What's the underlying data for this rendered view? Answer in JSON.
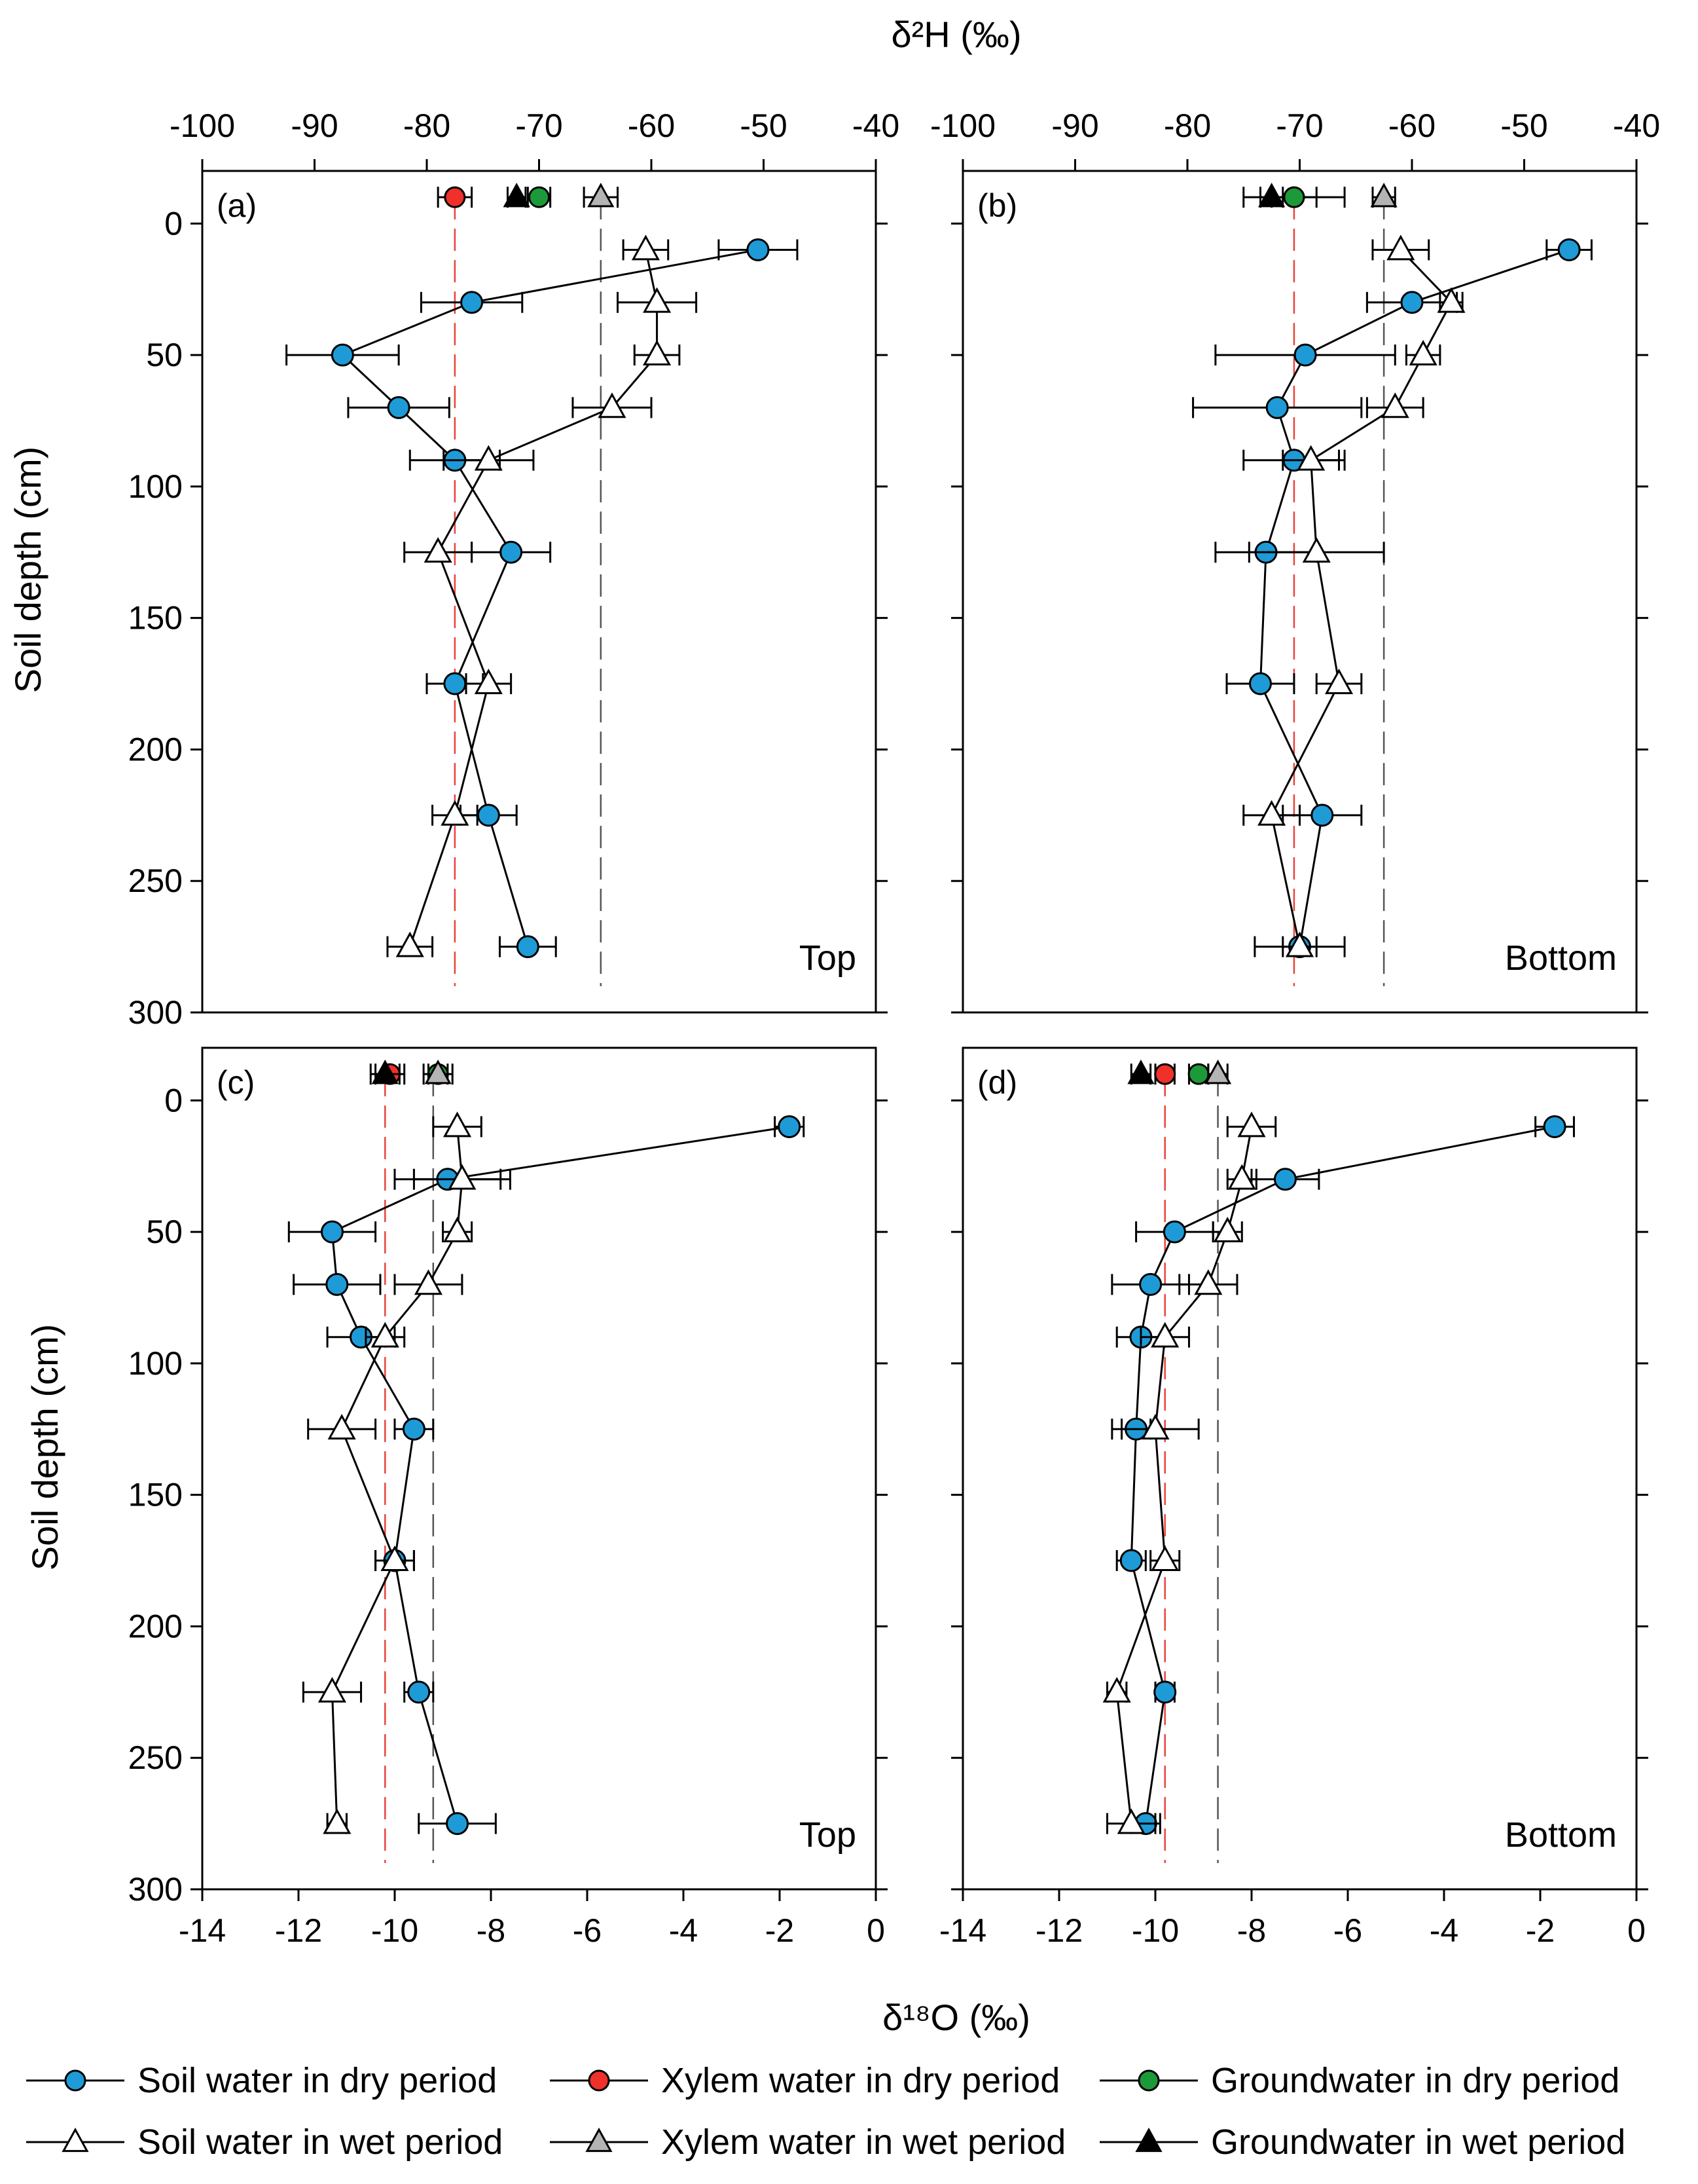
{
  "figure": {
    "top_axis_title": "δ²H (‰)",
    "bottom_axis_title": "δ¹⁸O (‰)",
    "y_axis_title": "Soil depth (cm)",
    "colors": {
      "soil_dry": "#1E9BD7",
      "xylem_dry": "#F0302A",
      "groundwater_dry": "#1C9A3A",
      "soil_wet": "#FFFFFF",
      "xylem_wet": "#B4B4B4",
      "groundwater_wet": "#000000",
      "ref_line_xylem_dry": "#E8443A",
      "ref_line_other": "#555555"
    },
    "legend": [
      {
        "key": "soil_dry",
        "label": "Soil water in dry period",
        "marker": "circle"
      },
      {
        "key": "xylem_dry",
        "label": "Xylem water in dry period",
        "marker": "circle"
      },
      {
        "key": "groundwater_dry",
        "label": "Groundwater in dry period",
        "marker": "circle"
      },
      {
        "key": "soil_wet",
        "label": "Soil water in wet period",
        "marker": "triangle"
      },
      {
        "key": "xylem_wet",
        "label": "Xylem water in wet period",
        "marker": "triangle"
      },
      {
        "key": "groundwater_wet",
        "label": "Groundwater in wet period",
        "marker": "triangle"
      }
    ]
  },
  "chart_data": [
    {
      "id": "a",
      "panel_label": "(a)",
      "site_label": "Top",
      "type": "scatter",
      "isotope": "δ2H",
      "xlim": [
        -100,
        -40
      ],
      "xticks": [
        -100,
        -90,
        -80,
        -70,
        -60,
        -50,
        -40
      ],
      "ylim": [
        0,
        300
      ],
      "yticks": [
        0,
        50,
        100,
        150,
        200,
        250,
        300
      ],
      "series": [
        {
          "name": "Soil water in dry period",
          "key": "soil_dry",
          "marker": "circle",
          "points": [
            {
              "x": -50.5,
              "y": 10,
              "err": 3.5
            },
            {
              "x": -76.0,
              "y": 30,
              "err": 4.5
            },
            {
              "x": -87.5,
              "y": 50,
              "err": 5.0
            },
            {
              "x": -82.5,
              "y": 70,
              "err": 4.5
            },
            {
              "x": -77.5,
              "y": 90,
              "err": 4.0
            },
            {
              "x": -72.5,
              "y": 125,
              "err": 3.5
            },
            {
              "x": -77.5,
              "y": 175,
              "err": 2.5
            },
            {
              "x": -74.5,
              "y": 225,
              "err": 2.5
            },
            {
              "x": -71.0,
              "y": 275,
              "err": 2.5
            }
          ]
        },
        {
          "name": "Soil water in wet period",
          "key": "soil_wet",
          "marker": "triangle",
          "points": [
            {
              "x": -60.5,
              "y": 10,
              "err": 2.0
            },
            {
              "x": -59.5,
              "y": 30,
              "err": 3.5
            },
            {
              "x": -59.5,
              "y": 50,
              "err": 2.0
            },
            {
              "x": -63.5,
              "y": 70,
              "err": 3.5
            },
            {
              "x": -74.5,
              "y": 90,
              "err": 4.0
            },
            {
              "x": -79.0,
              "y": 125,
              "err": 3.0
            },
            {
              "x": -74.5,
              "y": 175,
              "err": 2.0
            },
            {
              "x": -77.5,
              "y": 225,
              "err": 2.0
            },
            {
              "x": -81.5,
              "y": 275,
              "err": 2.0
            }
          ]
        },
        {
          "name": "Xylem water in dry period",
          "key": "xylem_dry",
          "marker": "circle",
          "points": [
            {
              "x": -77.5,
              "y": -10,
              "err": 1.5
            }
          ]
        },
        {
          "name": "Groundwater in dry period",
          "key": "groundwater_dry",
          "marker": "circle",
          "points": [
            {
              "x": -70.0,
              "y": -10,
              "err": 1.0
            }
          ]
        },
        {
          "name": "Xylem water in wet period",
          "key": "xylem_wet",
          "marker": "triangle",
          "points": [
            {
              "x": -64.5,
              "y": -10,
              "err": 1.5
            }
          ]
        },
        {
          "name": "Groundwater in wet period",
          "key": "groundwater_wet",
          "marker": "triangle",
          "points": [
            {
              "x": -72.0,
              "y": -10,
              "err": 0.8
            }
          ]
        }
      ],
      "ref_lines": [
        {
          "x": -77.5,
          "key": "xylem_dry"
        },
        {
          "x": -64.5,
          "key": "xylem_wet"
        }
      ]
    },
    {
      "id": "b",
      "panel_label": "(b)",
      "site_label": "Bottom",
      "type": "scatter",
      "isotope": "δ2H",
      "xlim": [
        -100,
        -40
      ],
      "xticks": [
        -100,
        -90,
        -80,
        -70,
        -60,
        -50,
        -40
      ],
      "ylim": [
        0,
        300
      ],
      "yticks": [
        0,
        50,
        100,
        150,
        200,
        250,
        300
      ],
      "series": [
        {
          "name": "Soil water in dry period",
          "key": "soil_dry",
          "marker": "circle",
          "points": [
            {
              "x": -46.0,
              "y": 10,
              "err": 2.0
            },
            {
              "x": -60.0,
              "y": 30,
              "err": 4.0
            },
            {
              "x": -69.5,
              "y": 50,
              "err": 8.0
            },
            {
              "x": -72.0,
              "y": 70,
              "err": 7.5
            },
            {
              "x": -70.5,
              "y": 90,
              "err": 4.5
            },
            {
              "x": -73.0,
              "y": 125,
              "err": 4.5
            },
            {
              "x": -73.5,
              "y": 175,
              "err": 3.0
            },
            {
              "x": -68.0,
              "y": 225,
              "err": 3.5
            },
            {
              "x": -70.0,
              "y": 275,
              "err": 4.0
            }
          ]
        },
        {
          "name": "Soil water in wet period",
          "key": "soil_wet",
          "marker": "triangle",
          "points": [
            {
              "x": -61.0,
              "y": 10,
              "err": 2.5
            },
            {
              "x": -56.5,
              "y": 30,
              "err": 1.0
            },
            {
              "x": -59.0,
              "y": 50,
              "err": 1.5
            },
            {
              "x": -61.5,
              "y": 70,
              "err": 2.5
            },
            {
              "x": -69.0,
              "y": 90,
              "err": 2.5
            },
            {
              "x": -68.5,
              "y": 125,
              "err": 6.0
            },
            {
              "x": -66.5,
              "y": 175,
              "err": 2.0
            },
            {
              "x": -72.5,
              "y": 225,
              "err": 2.5
            },
            {
              "x": -70.0,
              "y": 275,
              "err": 1.5
            }
          ]
        },
        {
          "name": "Xylem water in dry period",
          "key": "xylem_dry",
          "marker": "circle",
          "points": [
            {
              "x": -70.5,
              "y": -10,
              "err": 2.0
            }
          ]
        },
        {
          "name": "Groundwater in dry period",
          "key": "groundwater_dry",
          "marker": "circle",
          "points": [
            {
              "x": -70.5,
              "y": -10,
              "err": 4.5
            }
          ]
        },
        {
          "name": "Xylem water in wet period",
          "key": "xylem_wet",
          "marker": "triangle",
          "points": [
            {
              "x": -62.5,
              "y": -10,
              "err": 1.0
            }
          ]
        },
        {
          "name": "Groundwater in wet period",
          "key": "groundwater_wet",
          "marker": "triangle",
          "points": [
            {
              "x": -72.5,
              "y": -10,
              "err": 1.0
            }
          ]
        }
      ],
      "ref_lines": [
        {
          "x": -70.5,
          "key": "xylem_dry"
        },
        {
          "x": -62.5,
          "key": "xylem_wet"
        }
      ]
    },
    {
      "id": "c",
      "panel_label": "(c)",
      "site_label": "Top",
      "type": "scatter",
      "isotope": "δ18O",
      "xlim": [
        -14,
        0
      ],
      "xticks": [
        -14,
        -12,
        -10,
        -8,
        -6,
        -4,
        -2,
        0
      ],
      "ylim": [
        0,
        300
      ],
      "yticks": [
        0,
        50,
        100,
        150,
        200,
        250,
        300
      ],
      "series": [
        {
          "name": "Soil water in dry period",
          "key": "soil_dry",
          "marker": "circle",
          "points": [
            {
              "x": -1.8,
              "y": 10,
              "err": 0.3
            },
            {
              "x": -8.9,
              "y": 30,
              "err": 1.1
            },
            {
              "x": -11.3,
              "y": 50,
              "err": 0.9
            },
            {
              "x": -11.2,
              "y": 70,
              "err": 0.9
            },
            {
              "x": -10.7,
              "y": 90,
              "err": 0.7
            },
            {
              "x": -9.6,
              "y": 125,
              "err": 0.4
            },
            {
              "x": -10.0,
              "y": 175,
              "err": 0.4
            },
            {
              "x": -9.5,
              "y": 225,
              "err": 0.3
            },
            {
              "x": -8.7,
              "y": 275,
              "err": 0.8
            }
          ]
        },
        {
          "name": "Soil water in wet period",
          "key": "soil_wet",
          "marker": "triangle",
          "points": [
            {
              "x": -8.7,
              "y": 10,
              "err": 0.5
            },
            {
              "x": -8.6,
              "y": 30,
              "err": 1.0
            },
            {
              "x": -8.7,
              "y": 50,
              "err": 0.3
            },
            {
              "x": -9.3,
              "y": 70,
              "err": 0.7
            },
            {
              "x": -10.2,
              "y": 90,
              "err": 0.4
            },
            {
              "x": -11.1,
              "y": 125,
              "err": 0.7
            },
            {
              "x": -10.0,
              "y": 175,
              "err": 0.4
            },
            {
              "x": -11.3,
              "y": 225,
              "err": 0.6
            },
            {
              "x": -11.2,
              "y": 275,
              "err": 0.2
            }
          ]
        },
        {
          "name": "Xylem water in dry period",
          "key": "xylem_dry",
          "marker": "circle",
          "points": [
            {
              "x": -10.1,
              "y": -10,
              "err": 0.3
            }
          ]
        },
        {
          "name": "Groundwater in dry period",
          "key": "groundwater_dry",
          "marker": "circle",
          "points": [
            {
              "x": -9.1,
              "y": -10,
              "err": 0.2
            }
          ]
        },
        {
          "name": "Xylem water in wet period",
          "key": "xylem_wet",
          "marker": "triangle",
          "points": [
            {
              "x": -9.1,
              "y": -10,
              "err": 0.3
            }
          ]
        },
        {
          "name": "Groundwater in wet period",
          "key": "groundwater_wet",
          "marker": "triangle",
          "points": [
            {
              "x": -10.2,
              "y": -10,
              "err": 0.3
            }
          ]
        }
      ],
      "ref_lines": [
        {
          "x": -10.2,
          "key": "xylem_dry"
        },
        {
          "x": -9.2,
          "key": "xylem_wet"
        }
      ]
    },
    {
      "id": "d",
      "panel_label": "(d)",
      "site_label": "Bottom",
      "type": "scatter",
      "isotope": "δ18O",
      "xlim": [
        -14,
        0
      ],
      "xticks": [
        -14,
        -12,
        -10,
        -8,
        -6,
        -4,
        -2,
        0
      ],
      "ylim": [
        0,
        300
      ],
      "yticks": [
        0,
        50,
        100,
        150,
        200,
        250,
        300
      ],
      "series": [
        {
          "name": "Soil water in dry period",
          "key": "soil_dry",
          "marker": "circle",
          "points": [
            {
              "x": -1.7,
              "y": 10,
              "err": 0.4
            },
            {
              "x": -7.3,
              "y": 30,
              "err": 0.7
            },
            {
              "x": -9.6,
              "y": 50,
              "err": 0.8
            },
            {
              "x": -10.1,
              "y": 70,
              "err": 0.8
            },
            {
              "x": -10.3,
              "y": 90,
              "err": 0.5
            },
            {
              "x": -10.4,
              "y": 125,
              "err": 0.3
            },
            {
              "x": -10.5,
              "y": 175,
              "err": 0.3
            },
            {
              "x": -9.8,
              "y": 225,
              "err": 0.2
            },
            {
              "x": -10.2,
              "y": 275,
              "err": 0.3
            }
          ]
        },
        {
          "name": "Soil water in wet period",
          "key": "soil_wet",
          "marker": "triangle",
          "points": [
            {
              "x": -8.0,
              "y": 10,
              "err": 0.5
            },
            {
              "x": -8.2,
              "y": 30,
              "err": 0.3
            },
            {
              "x": -8.5,
              "y": 50,
              "err": 0.3
            },
            {
              "x": -8.9,
              "y": 70,
              "err": 0.6
            },
            {
              "x": -9.8,
              "y": 90,
              "err": 0.5
            },
            {
              "x": -10.0,
              "y": 125,
              "err": 0.9
            },
            {
              "x": -9.8,
              "y": 175,
              "err": 0.3
            },
            {
              "x": -10.8,
              "y": 225,
              "err": 0.2
            },
            {
              "x": -10.5,
              "y": 275,
              "err": 0.5
            }
          ]
        },
        {
          "name": "Xylem water in dry period",
          "key": "xylem_dry",
          "marker": "circle",
          "points": [
            {
              "x": -9.8,
              "y": -10,
              "err": 0.2
            }
          ]
        },
        {
          "name": "Groundwater in dry period",
          "key": "groundwater_dry",
          "marker": "circle",
          "points": [
            {
              "x": -9.1,
              "y": -10,
              "err": 0.2
            }
          ]
        },
        {
          "name": "Xylem water in wet period",
          "key": "xylem_wet",
          "marker": "triangle",
          "points": [
            {
              "x": -8.7,
              "y": -10,
              "err": 0.2
            }
          ]
        },
        {
          "name": "Groundwater in wet period",
          "key": "groundwater_wet",
          "marker": "triangle",
          "points": [
            {
              "x": -10.3,
              "y": -10,
              "err": 0.2
            }
          ]
        }
      ],
      "ref_lines": [
        {
          "x": -9.8,
          "key": "xylem_dry"
        },
        {
          "x": -8.7,
          "key": "xylem_wet"
        }
      ]
    }
  ]
}
